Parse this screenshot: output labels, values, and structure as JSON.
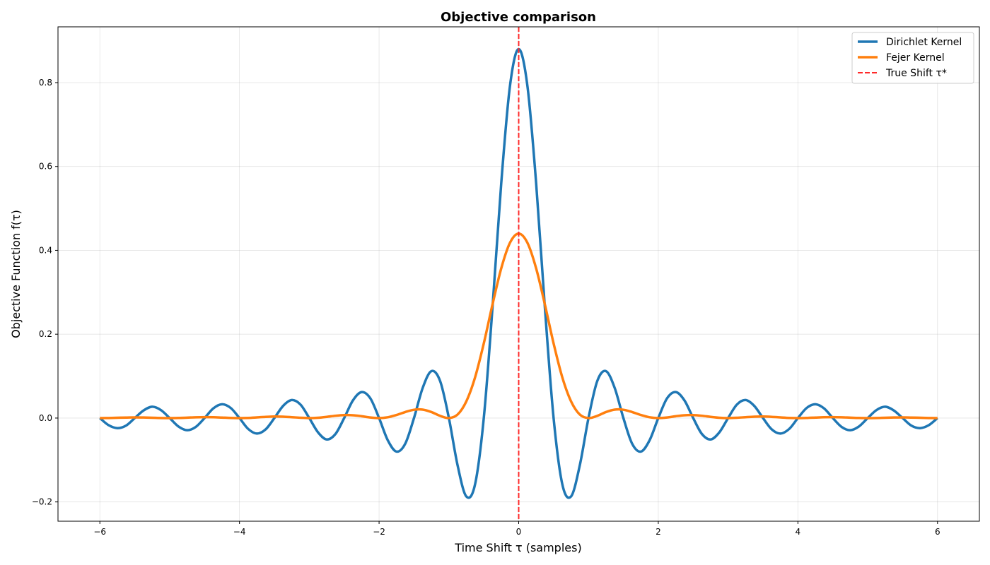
{
  "chart_data": {
    "type": "line",
    "title": "Objective comparison",
    "xlabel": "Time Shift τ (samples)",
    "ylabel": "Objective Function f(τ)",
    "xlim": [
      -6.6,
      6.6
    ],
    "ylim": [
      -0.246,
      0.933
    ],
    "grid": true,
    "legend_placement": "top-right",
    "x_ticks": [
      -6,
      -4,
      -2,
      0,
      2,
      4,
      6
    ],
    "x_tick_labels": [
      "−6",
      "−4",
      "−2",
      "0",
      "2",
      "4",
      "6"
    ],
    "y_ticks": [
      -0.2,
      0.0,
      0.2,
      0.4,
      0.6,
      0.8
    ],
    "y_tick_labels": [
      "−0.2",
      "0.0",
      "0.2",
      "0.4",
      "0.6",
      "0.8"
    ],
    "x": [
      -6,
      -5.875,
      -5.75,
      -5.625,
      -5.5,
      -5.375,
      -5.25,
      -5.125,
      -5,
      -4.875,
      -4.75,
      -4.625,
      -4.5,
      -4.375,
      -4.25,
      -4.125,
      -4,
      -3.875,
      -3.75,
      -3.625,
      -3.5,
      -3.375,
      -3.25,
      -3.125,
      -3,
      -2.875,
      -2.75,
      -2.625,
      -2.5,
      -2.375,
      -2.25,
      -2.125,
      -2,
      -1.875,
      -1.75,
      -1.625,
      -1.5,
      -1.375,
      -1.25,
      -1.125,
      -1,
      -0.875,
      -0.75,
      -0.625,
      -0.5,
      -0.375,
      -0.25,
      -0.125,
      0,
      0.125,
      0.25,
      0.375,
      0.5,
      0.625,
      0.75,
      0.875,
      1,
      1.125,
      1.25,
      1.375,
      1.5,
      1.625,
      1.75,
      1.875,
      2,
      2.125,
      2.25,
      2.375,
      2.5,
      2.625,
      2.75,
      2.875,
      3,
      3.125,
      3.25,
      3.375,
      3.5,
      3.625,
      3.75,
      3.875,
      4,
      4.125,
      4.25,
      4.375,
      4.5,
      4.625,
      4.75,
      4.875,
      5,
      5.125,
      5.25,
      5.375,
      5.5,
      5.625,
      5.75,
      5.875,
      6
    ],
    "series": [
      {
        "name": "Dirichlet Kernel",
        "color": "#1f77b4",
        "style": "solid",
        "values": [
          0,
          -0.017,
          -0.024,
          -0.018,
          0,
          0.018,
          0.027,
          0.019,
          0,
          -0.02,
          -0.029,
          -0.021,
          0,
          0.023,
          0.033,
          0.024,
          0,
          -0.026,
          -0.037,
          -0.027,
          0,
          0.029,
          0.043,
          0.032,
          0,
          -0.034,
          -0.051,
          -0.038,
          0,
          0.042,
          0.062,
          0.047,
          0,
          -0.053,
          -0.08,
          -0.061,
          0,
          0.072,
          0.112,
          0.088,
          0,
          -0.113,
          -0.187,
          -0.158,
          0,
          0.264,
          0.56,
          0.792,
          0.88,
          0.792,
          0.56,
          0.264,
          0,
          -0.158,
          -0.187,
          -0.113,
          0,
          0.088,
          0.112,
          0.072,
          0,
          -0.061,
          -0.08,
          -0.053,
          0,
          0.047,
          0.062,
          0.042,
          0,
          -0.038,
          -0.051,
          -0.034,
          0,
          0.032,
          0.043,
          0.029,
          0,
          -0.027,
          -0.037,
          -0.026,
          0,
          0.024,
          0.033,
          0.023,
          0,
          -0.021,
          -0.029,
          -0.02,
          0,
          0.019,
          0.027,
          0.018,
          0,
          -0.018,
          -0.024,
          -0.017,
          0
        ]
      },
      {
        "name": "Fejer Kernel",
        "color": "#ff7f0e",
        "style": "solid",
        "values": [
          0,
          0.0002,
          0.0007,
          0.0012,
          0.0015,
          0.0013,
          0.0008,
          0.0002,
          0,
          0.0003,
          0.001,
          0.0018,
          0.0022,
          0.002,
          0.0012,
          0.0004,
          0,
          0.0004,
          0.0016,
          0.0029,
          0.0036,
          0.0033,
          0.0021,
          0.0007,
          0,
          0.0008,
          0.0029,
          0.0055,
          0.0071,
          0.0067,
          0.0044,
          0.0014,
          0,
          0.0019,
          0.0073,
          0.0144,
          0.0198,
          0.0201,
          0.0143,
          0.0052,
          0,
          0.0085,
          0.04,
          0.097,
          0.178,
          0.271,
          0.357,
          0.418,
          0.44,
          0.418,
          0.357,
          0.271,
          0.178,
          0.097,
          0.04,
          0.0085,
          0,
          0.0052,
          0.0143,
          0.0201,
          0.0198,
          0.0144,
          0.0073,
          0.0019,
          0,
          0.0014,
          0.0044,
          0.0067,
          0.0071,
          0.0055,
          0.0029,
          0.0008,
          0,
          0.0007,
          0.0021,
          0.0033,
          0.0036,
          0.0029,
          0.0016,
          0.0004,
          0,
          0.0004,
          0.0012,
          0.002,
          0.0022,
          0.0018,
          0.001,
          0.0003,
          0,
          0.0002,
          0.0008,
          0.0013,
          0.0015,
          0.0012,
          0.0007,
          0.0002,
          0
        ]
      }
    ],
    "vline": {
      "name": "True Shift τ*",
      "x": 0,
      "color": "#ff2a2a",
      "style": "dashed"
    }
  }
}
